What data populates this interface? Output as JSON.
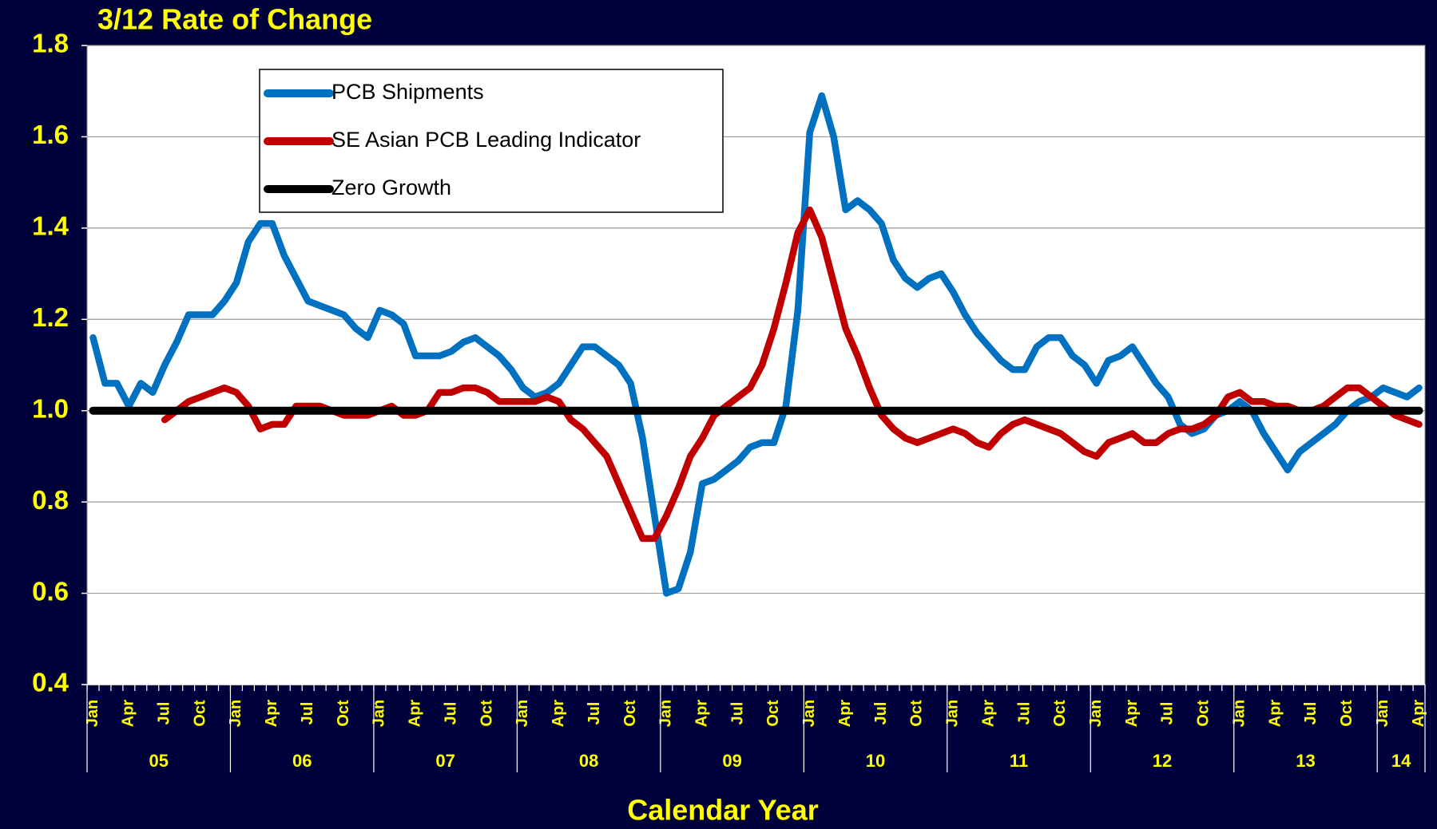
{
  "chart_data": {
    "type": "line",
    "title": "3/12 Rate of Change",
    "x_label": "Calendar Year",
    "categories": [
      "Jan",
      null,
      null,
      "Apr",
      null,
      null,
      "Jul",
      null,
      null,
      "Oct",
      null,
      null,
      "Jan",
      null,
      null,
      "Apr",
      null,
      null,
      "Jul",
      null,
      null,
      "Oct",
      null,
      null,
      "Jan",
      null,
      null,
      "Apr",
      null,
      null,
      "Jul",
      null,
      null,
      "Oct",
      null,
      null,
      "Jan",
      null,
      null,
      "Apr",
      null,
      null,
      "Jul",
      null,
      null,
      "Oct",
      null,
      null,
      "Jan",
      null,
      null,
      "Apr",
      null,
      null,
      "Jul",
      null,
      null,
      "Oct",
      null,
      null,
      "Jan",
      null,
      null,
      "Apr",
      null,
      null,
      "Jul",
      null,
      null,
      "Oct",
      null,
      null,
      "Jan",
      null,
      null,
      "Apr",
      null,
      null,
      "Jul",
      null,
      null,
      "Oct",
      null,
      null,
      "Jan",
      null,
      null,
      "Apr",
      null,
      null,
      "Jul",
      null,
      null,
      "Oct",
      null,
      null,
      "Jan",
      null,
      null,
      "Apr",
      null,
      null,
      "Jul",
      null,
      null,
      "Oct",
      null,
      null,
      "Jan",
      null,
      null,
      "Apr"
    ],
    "x_groups": [
      "05",
      "06",
      "07",
      "08",
      "09",
      "10",
      "11",
      "12",
      "13",
      "14"
    ],
    "series": [
      {
        "name": "PCB Shipments",
        "color": "#0070c0",
        "values": [
          1.16,
          1.06,
          1.06,
          1.01,
          1.06,
          1.04,
          1.1,
          1.15,
          1.21,
          1.21,
          1.21,
          1.24,
          1.28,
          1.37,
          1.41,
          1.41,
          1.34,
          1.29,
          1.24,
          1.23,
          1.22,
          1.21,
          1.18,
          1.16,
          1.22,
          1.21,
          1.19,
          1.12,
          1.12,
          1.12,
          1.13,
          1.15,
          1.16,
          1.14,
          1.12,
          1.09,
          1.05,
          1.03,
          1.04,
          1.06,
          1.1,
          1.14,
          1.14,
          1.12,
          1.1,
          1.06,
          0.94,
          0.77,
          0.6,
          0.61,
          0.69,
          0.84,
          0.85,
          0.87,
          0.89,
          0.92,
          0.93,
          0.93,
          1.01,
          1.22,
          1.61,
          1.69,
          1.6,
          1.44,
          1.46,
          1.44,
          1.41,
          1.33,
          1.29,
          1.27,
          1.29,
          1.3,
          1.26,
          1.21,
          1.17,
          1.14,
          1.11,
          1.09,
          1.09,
          1.14,
          1.16,
          1.16,
          1.12,
          1.1,
          1.06,
          1.11,
          1.12,
          1.14,
          1.1,
          1.06,
          1.03,
          0.97,
          0.95,
          0.96,
          0.99,
          1.0,
          1.02,
          1.0,
          0.95,
          0.91,
          0.87,
          0.91,
          0.93,
          0.95,
          0.97,
          1.0,
          1.02,
          1.03,
          1.05,
          1.04,
          1.03,
          1.05
        ]
      },
      {
        "name": "SE Asian PCB Leading Indicator",
        "color": "#c00000",
        "values": [
          null,
          null,
          null,
          null,
          null,
          null,
          0.98,
          1.0,
          1.02,
          1.03,
          1.04,
          1.05,
          1.04,
          1.01,
          0.96,
          0.97,
          0.97,
          1.01,
          1.01,
          1.01,
          1.0,
          0.99,
          0.99,
          0.99,
          1.0,
          1.01,
          0.99,
          0.99,
          1.0,
          1.04,
          1.04,
          1.05,
          1.05,
          1.04,
          1.02,
          1.02,
          1.02,
          1.02,
          1.03,
          1.02,
          0.98,
          0.96,
          0.93,
          0.9,
          0.84,
          0.78,
          0.72,
          0.72,
          0.77,
          0.83,
          0.9,
          0.94,
          0.99,
          1.01,
          1.03,
          1.05,
          1.1,
          1.18,
          1.28,
          1.39,
          1.44,
          1.38,
          1.28,
          1.18,
          1.12,
          1.05,
          0.99,
          0.96,
          0.94,
          0.93,
          0.94,
          0.95,
          0.96,
          0.95,
          0.93,
          0.92,
          0.95,
          0.97,
          0.98,
          0.97,
          0.96,
          0.95,
          0.93,
          0.91,
          0.9,
          0.93,
          0.94,
          0.95,
          0.93,
          0.93,
          0.95,
          0.96,
          0.96,
          0.97,
          0.99,
          1.03,
          1.04,
          1.02,
          1.02,
          1.01,
          1.01,
          1.0,
          1.0,
          1.01,
          1.03,
          1.05,
          1.05,
          1.03,
          1.01,
          0.99,
          0.98,
          0.97
        ]
      },
      {
        "name": "Zero Growth",
        "color": "#000000",
        "values": [
          1,
          1,
          1,
          1,
          1,
          1,
          1,
          1,
          1,
          1,
          1,
          1,
          1,
          1,
          1,
          1,
          1,
          1,
          1,
          1,
          1,
          1,
          1,
          1,
          1,
          1,
          1,
          1,
          1,
          1,
          1,
          1,
          1,
          1,
          1,
          1,
          1,
          1,
          1,
          1,
          1,
          1,
          1,
          1,
          1,
          1,
          1,
          1,
          1,
          1,
          1,
          1,
          1,
          1,
          1,
          1,
          1,
          1,
          1,
          1,
          1,
          1,
          1,
          1,
          1,
          1,
          1,
          1,
          1,
          1,
          1,
          1,
          1,
          1,
          1,
          1,
          1,
          1,
          1,
          1,
          1,
          1,
          1,
          1,
          1,
          1,
          1,
          1,
          1,
          1,
          1,
          1,
          1,
          1,
          1,
          1,
          1,
          1,
          1,
          1,
          1,
          1,
          1,
          1,
          1,
          1,
          1,
          1,
          1,
          1,
          1,
          1
        ]
      }
    ],
    "ylim": [
      0.4,
      1.8
    ],
    "yticks": [
      0.4,
      0.6,
      0.8,
      {
        "value": 1,
        "label": "1.0"
      },
      1.2,
      1.4,
      1.6,
      1.8
    ],
    "grid": true,
    "legend": "upper left"
  }
}
